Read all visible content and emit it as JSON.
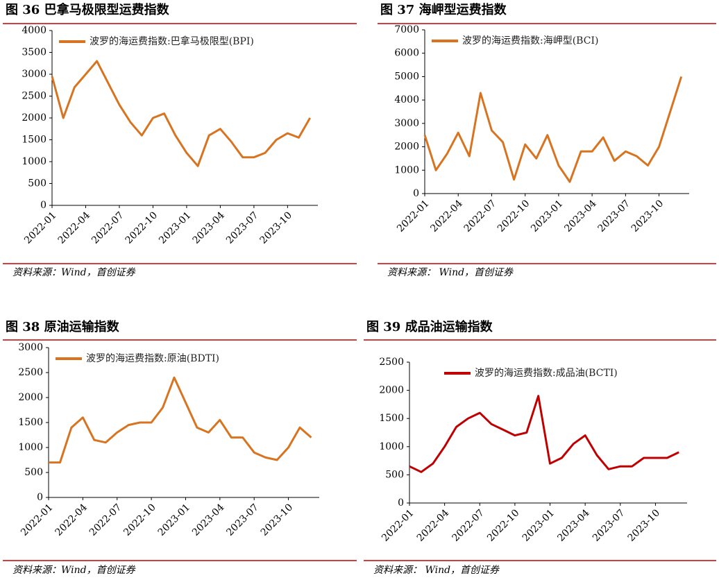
{
  "chart_data": [
    {
      "type": "line",
      "title": "图 36 巴拿马极限型运费指数",
      "source": "资料来源：Wind，首创证券",
      "x": [
        "2022-01",
        "2022-02",
        "2022-03",
        "2022-04",
        "2022-05",
        "2022-06",
        "2022-07",
        "2022-08",
        "2022-09",
        "2022-10",
        "2022-11",
        "2022-12",
        "2023-01",
        "2023-02",
        "2023-03",
        "2023-04",
        "2023-05",
        "2023-06",
        "2023-07",
        "2023-08",
        "2023-09",
        "2023-10",
        "2023-11",
        "2023-12"
      ],
      "xticks": [
        "2022-01",
        "2022-04",
        "2022-07",
        "2022-10",
        "2023-01",
        "2023-04",
        "2023-07",
        "2023-10"
      ],
      "ylim": [
        0,
        4000
      ],
      "yticks": [
        0,
        500,
        1000,
        1500,
        2000,
        2500,
        3000,
        3500,
        4000
      ],
      "legend": "upper left",
      "series": [
        {
          "name": "波罗的海运费指数:巴拿马极限型(BPI)",
          "color": "#D8731F",
          "values": [
            2950,
            2000,
            2700,
            3000,
            3300,
            2800,
            2300,
            1900,
            1600,
            2000,
            2100,
            1600,
            1200,
            900,
            1600,
            1750,
            1450,
            1100,
            1100,
            1200,
            1500,
            1650,
            1550,
            2000
          ]
        }
      ]
    },
    {
      "type": "line",
      "title": "图 37 海岬型运费指数",
      "source": "资料来源：  Wind，首创证券",
      "x": [
        "2022-01",
        "2022-02",
        "2022-03",
        "2022-04",
        "2022-05",
        "2022-06",
        "2022-07",
        "2022-08",
        "2022-09",
        "2022-10",
        "2022-11",
        "2022-12",
        "2023-01",
        "2023-02",
        "2023-03",
        "2023-04",
        "2023-05",
        "2023-06",
        "2023-07",
        "2023-08",
        "2023-09",
        "2023-10",
        "2023-11",
        "2023-12"
      ],
      "xticks": [
        "2022-01",
        "2022-04",
        "2022-07",
        "2022-10",
        "2023-01",
        "2023-04",
        "2023-07",
        "2023-10"
      ],
      "ylim": [
        0,
        7000
      ],
      "yticks": [
        0,
        1000,
        2000,
        3000,
        4000,
        5000,
        6000,
        7000
      ],
      "legend": "upper left",
      "series": [
        {
          "name": "波罗的海运费指数:海岬型(BCI)",
          "color": "#D8731F",
          "values": [
            2500,
            1000,
            1700,
            2600,
            1600,
            4300,
            2700,
            2200,
            600,
            2100,
            1500,
            2500,
            1200,
            500,
            1800,
            1800,
            2400,
            1400,
            1800,
            1600,
            1200,
            2000,
            3500,
            5000
          ]
        }
      ]
    },
    {
      "type": "line",
      "title": "图 38 原油运输指数",
      "source": "资料来源：Wind，首创证券",
      "x": [
        "2022-01",
        "2022-02",
        "2022-03",
        "2022-04",
        "2022-05",
        "2022-06",
        "2022-07",
        "2022-08",
        "2022-09",
        "2022-10",
        "2022-11",
        "2022-12",
        "2023-01",
        "2023-02",
        "2023-03",
        "2023-04",
        "2023-05",
        "2023-06",
        "2023-07",
        "2023-08",
        "2023-09",
        "2023-10",
        "2023-11",
        "2023-12"
      ],
      "xticks": [
        "2022-01",
        "2022-04",
        "2022-07",
        "2022-10",
        "2023-01",
        "2023-04",
        "2023-07",
        "2023-10"
      ],
      "ylim": [
        0,
        3000
      ],
      "yticks": [
        0,
        500,
        1000,
        1500,
        2000,
        2500,
        3000
      ],
      "legend": "upper left",
      "series": [
        {
          "name": "波罗的海运费指数:原油(BDTI)",
          "color": "#D8731F",
          "values": [
            700,
            700,
            1400,
            1600,
            1150,
            1100,
            1300,
            1450,
            1500,
            1500,
            1800,
            2400,
            1900,
            1400,
            1300,
            1550,
            1200,
            1200,
            900,
            800,
            750,
            1000,
            1400,
            1200
          ]
        }
      ]
    },
    {
      "type": "line",
      "title": "图 39 成品油运输指数",
      "source": "资料来源：  Wind，首创证券",
      "x": [
        "2022-01",
        "2022-02",
        "2022-03",
        "2022-04",
        "2022-05",
        "2022-06",
        "2022-07",
        "2022-08",
        "2022-09",
        "2022-10",
        "2022-11",
        "2022-12",
        "2023-01",
        "2023-02",
        "2023-03",
        "2023-04",
        "2023-05",
        "2023-06",
        "2023-07",
        "2023-08",
        "2023-09",
        "2023-10",
        "2023-11",
        "2023-12"
      ],
      "xticks": [
        "2022-01",
        "2022-04",
        "2022-07",
        "2022-10",
        "2023-01",
        "2023-04",
        "2023-07",
        "2023-10"
      ],
      "ylim": [
        0,
        2500
      ],
      "yticks": [
        0,
        500,
        1000,
        1500,
        2000,
        2500
      ],
      "legend": "upper center",
      "series": [
        {
          "name": "波罗的海运费指数:成品油(BCTI)",
          "color": "#C00000",
          "values": [
            650,
            550,
            700,
            1000,
            1350,
            1500,
            1600,
            1400,
            1300,
            1200,
            1250,
            1900,
            700,
            800,
            1050,
            1200,
            850,
            600,
            650,
            650,
            800,
            800,
            800,
            900
          ]
        }
      ]
    }
  ]
}
